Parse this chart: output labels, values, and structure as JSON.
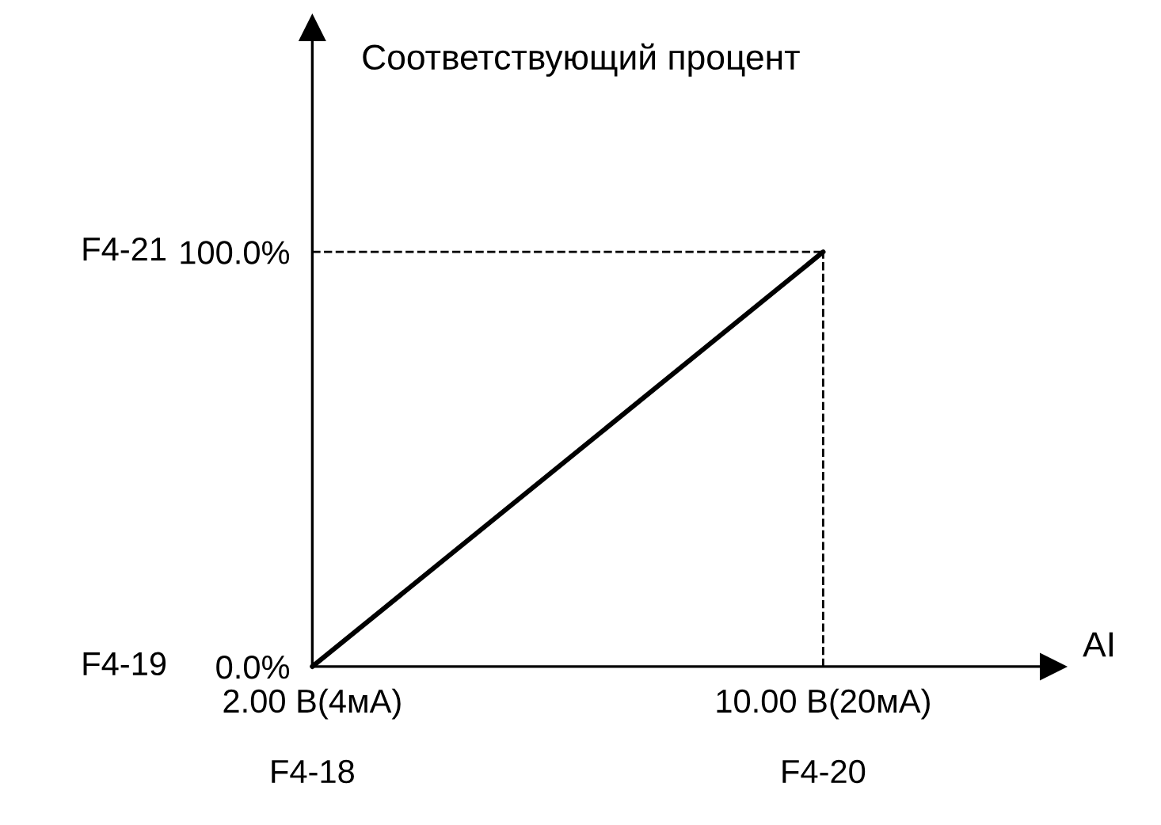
{
  "chart_data": {
    "type": "line",
    "xlabel": "AI",
    "ylabel": "Соответствующий процент",
    "categories": [
      "2.00 В(4мА)",
      "10.00 В(20мА)"
    ],
    "series": [
      {
        "color": "#000000",
        "values": [
          0,
          100
        ]
      }
    ],
    "ylim": [
      0,
      154
    ],
    "yticks": [
      {
        "value": 0,
        "label": "0.0%"
      },
      {
        "value": 100,
        "label": "100.0%"
      }
    ],
    "annotations": [
      "F4-18",
      "F4-20",
      "F4-19",
      "F4-21"
    ],
    "ref_lines": [
      {
        "axis": "y",
        "value": 100,
        "line_style": "dashed",
        "color": "#000000"
      },
      {
        "axis": "x",
        "value": "10.00 В(20мА)",
        "line_style": "dashed",
        "color": "#000000"
      }
    ],
    "grid": false,
    "line_style": "solid",
    "marker": "none"
  }
}
